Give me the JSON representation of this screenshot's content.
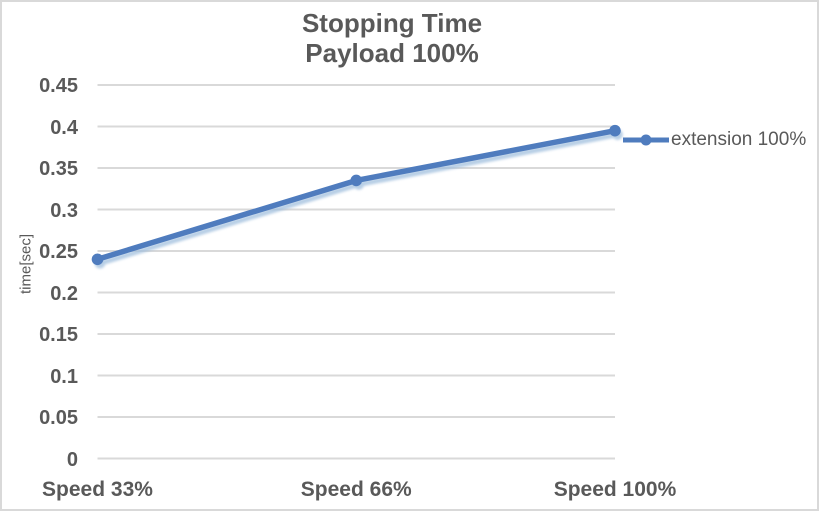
{
  "chart_data": {
    "type": "line",
    "title": "Stopping Time",
    "subtitle": "Payload 100%",
    "ylabel": "time[sec]",
    "categories": [
      "Speed 33%",
      "Speed 66%",
      "Speed 100%"
    ],
    "series": [
      {
        "name": "extension 100%",
        "values": [
          0.24,
          0.335,
          0.395
        ],
        "color": "#4f7cbe",
        "shadow_color": "#9fbedd",
        "marker": "circle"
      }
    ],
    "ylim": [
      0,
      0.45
    ],
    "ytick_step": 0.05,
    "yticks": [
      "0",
      "0.05",
      "0.1",
      "0.15",
      "0.2",
      "0.25",
      "0.3",
      "0.35",
      "0.4",
      "0.45"
    ],
    "grid": true,
    "legend_position": "right",
    "colors": {
      "text": "#595959",
      "gridline": "#d9d9d9",
      "border": "#d9d9d9",
      "background": "#ffffff"
    }
  }
}
